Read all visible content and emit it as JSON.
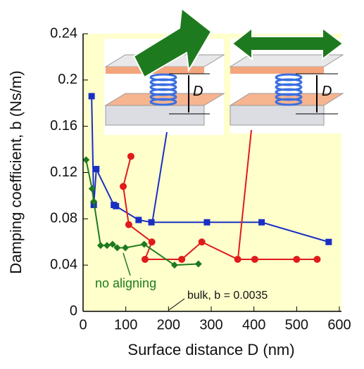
{
  "chart_data": {
    "type": "scatter",
    "x_label": "Surface distance D (nm)",
    "y_label": "Damping coefficient, b (Ns/m)",
    "xlim": [
      0,
      600
    ],
    "xticks": [
      0,
      100,
      200,
      300,
      400,
      500,
      600
    ],
    "ylim": [
      0,
      0.24
    ],
    "yticks": [
      0,
      0.04,
      0.08,
      0.12,
      0.16,
      0.2,
      0.24
    ],
    "background": "#ffffcc",
    "series": [
      {
        "color": "#1a2fc4",
        "marker": "square",
        "x": [
          20,
          25,
          31,
          72,
          77,
          130,
          160,
          290,
          418,
          575
        ],
        "y": [
          0.186,
          0.092,
          0.123,
          0.092,
          0.091,
          0.079,
          0.077,
          0.077,
          0.077,
          0.06
        ]
      },
      {
        "color": "#e01b1b",
        "marker": "circle",
        "x": [
          112,
          94,
          107,
          161,
          145,
          231,
          278,
          362,
          402,
          500,
          548
        ],
        "y": [
          0.134,
          0.108,
          0.075,
          0.06,
          0.045,
          0.045,
          0.06,
          0.045,
          0.045,
          0.045,
          0.045
        ]
      },
      {
        "color": "#1e7a1e",
        "marker": "diamond",
        "x": [
          7,
          21,
          25,
          41,
          56,
          69,
          80,
          99,
          143,
          214,
          270
        ],
        "y": [
          0.131,
          0.106,
          0.095,
          0.057,
          0.057,
          0.058,
          0.055,
          0.055,
          0.058,
          0.04,
          0.041
        ]
      }
    ],
    "annotations": [
      "no aligning",
      "bulk, b = 0.0035",
      "D",
      "D"
    ]
  }
}
